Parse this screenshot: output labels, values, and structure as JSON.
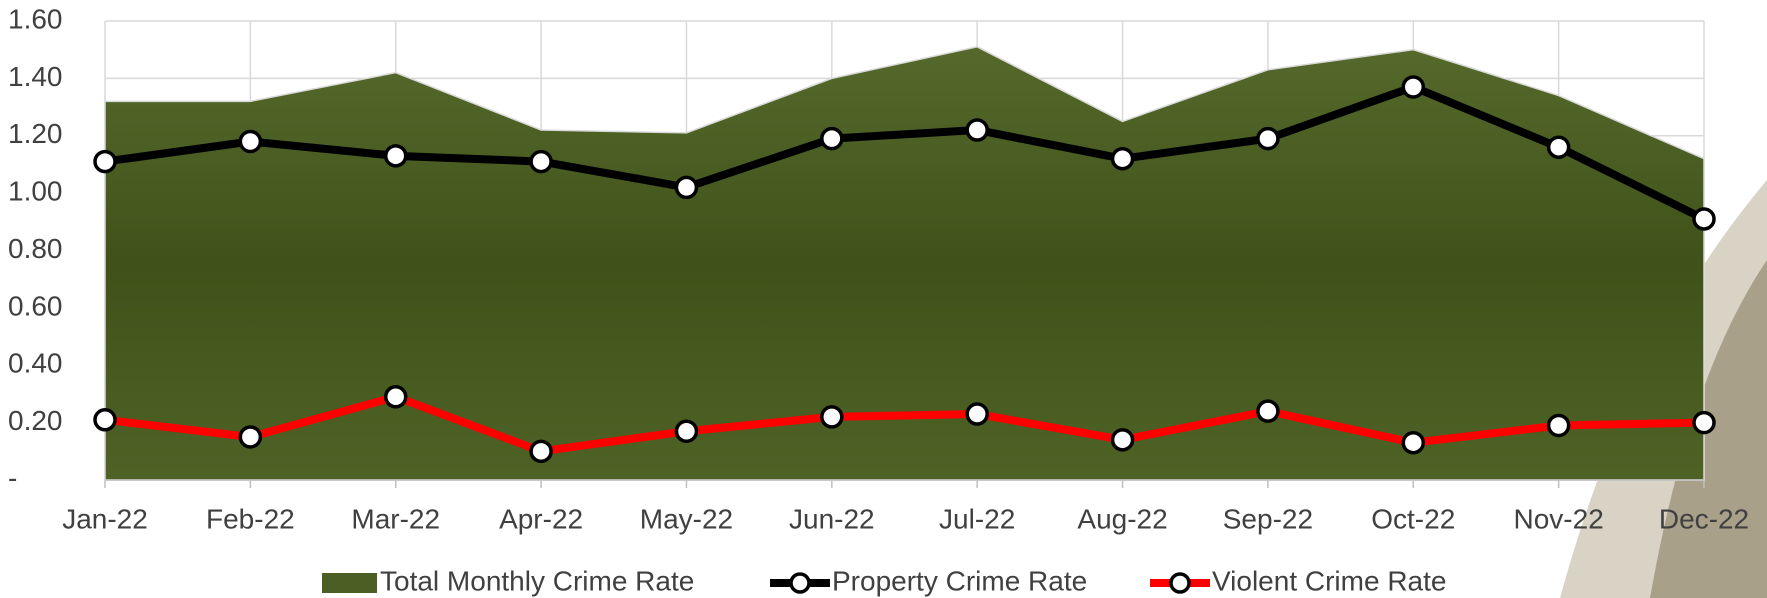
{
  "chart_data": {
    "type": "line",
    "categories": [
      "Jan-22",
      "Feb-22",
      "Mar-22",
      "Apr-22",
      "May-22",
      "Jun-22",
      "Jul-22",
      "Aug-22",
      "Sep-22",
      "Oct-22",
      "Nov-22",
      "Dec-22"
    ],
    "series": [
      {
        "name": "Total Monthly Crime Rate",
        "type": "area",
        "color": "#4b5e24",
        "values": [
          1.32,
          1.32,
          1.42,
          1.22,
          1.21,
          1.4,
          1.51,
          1.25,
          1.43,
          1.5,
          1.34,
          1.12
        ]
      },
      {
        "name": "Property Crime Rate",
        "type": "line",
        "color": "#000000",
        "values": [
          1.11,
          1.18,
          1.13,
          1.11,
          1.02,
          1.19,
          1.22,
          1.12,
          1.19,
          1.37,
          1.16,
          0.91
        ]
      },
      {
        "name": "Violent Crime Rate",
        "type": "line",
        "color": "#ff0000",
        "values": [
          0.21,
          0.15,
          0.29,
          0.1,
          0.17,
          0.22,
          0.23,
          0.14,
          0.24,
          0.13,
          0.19,
          0.2
        ]
      }
    ],
    "ylim": [
      0,
      1.6
    ],
    "yticks": [
      {
        "value": 0,
        "label": "-"
      },
      {
        "value": 0.2,
        "label": "0.20"
      },
      {
        "value": 0.4,
        "label": "0.40"
      },
      {
        "value": 0.6,
        "label": "0.60"
      },
      {
        "value": 0.8,
        "label": "0.80"
      },
      {
        "value": 1.0,
        "label": "1.00"
      },
      {
        "value": 1.2,
        "label": "1.20"
      },
      {
        "value": 1.4,
        "label": "1.40"
      },
      {
        "value": 1.6,
        "label": "1.60"
      }
    ],
    "grid": true,
    "legend": "bottom"
  }
}
